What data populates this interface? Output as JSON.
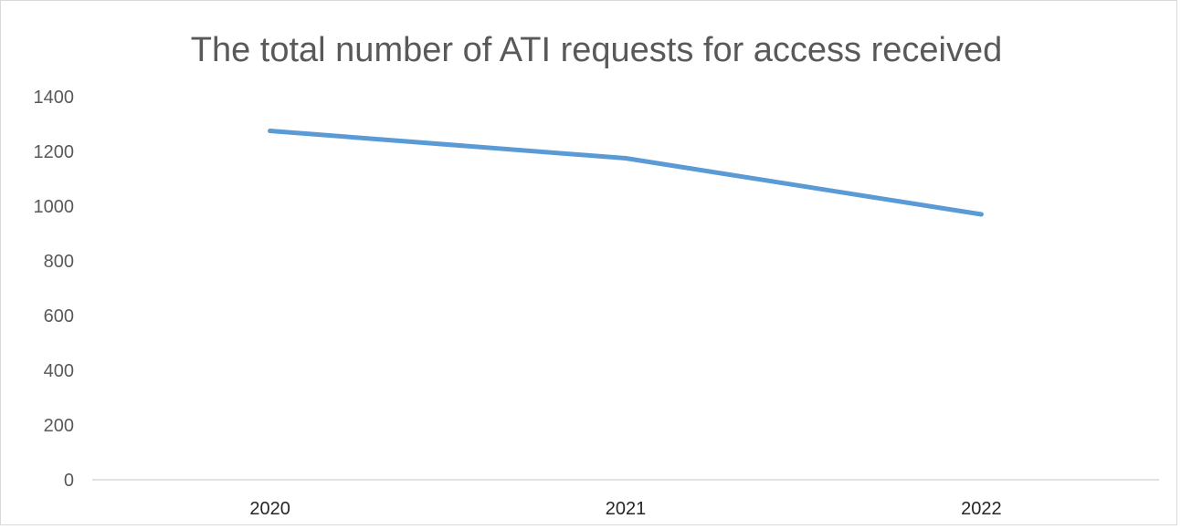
{
  "chart_data": {
    "type": "line",
    "title": "The total number of ATI requests for access received",
    "xlabel": "",
    "ylabel": "",
    "categories": [
      "2020",
      "2021",
      "2022"
    ],
    "series": [
      {
        "values": [
          1275,
          1175,
          970
        ]
      }
    ],
    "ylim": [
      0,
      1400
    ],
    "yticks": [
      0,
      200,
      400,
      600,
      800,
      1000,
      1200,
      1400
    ],
    "grid": false,
    "legend": "none",
    "line_color": "#5b9bd5",
    "axis_color": "#d9d9d9"
  }
}
